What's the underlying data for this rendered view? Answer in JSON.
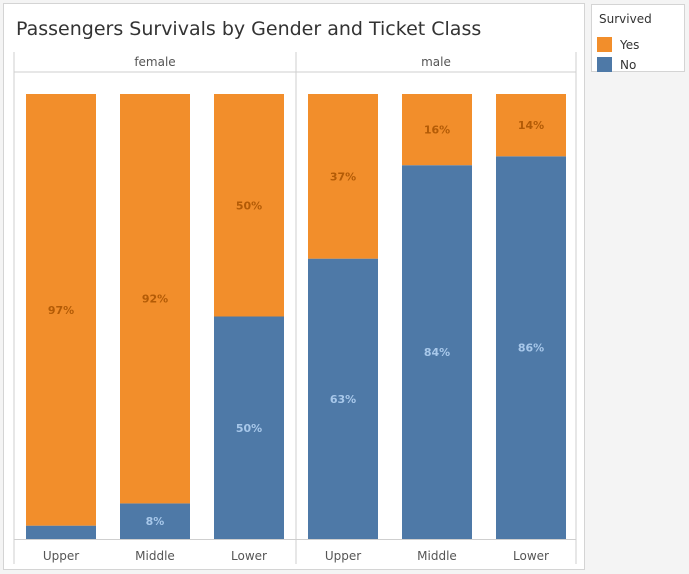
{
  "chart_data": {
    "type": "bar",
    "stacked": true,
    "normalized": true,
    "title": "Passengers Survivals by Gender and Ticket Class",
    "facet_order": [
      "female",
      "male"
    ],
    "categories": [
      "Upper",
      "Middle",
      "Lower"
    ],
    "ylim": [
      0,
      100
    ],
    "grid": false,
    "legend": {
      "title": "Survived",
      "position": "right",
      "entries": [
        "Yes",
        "No"
      ]
    },
    "facets": [
      {
        "name": "female",
        "series": [
          {
            "name": "No",
            "values": [
              3,
              8,
              50
            ],
            "labels": [
              "",
              "8%",
              "50%"
            ]
          },
          {
            "name": "Yes",
            "values": [
              97,
              92,
              50
            ],
            "labels": [
              "97%",
              "92%",
              "50%"
            ]
          }
        ]
      },
      {
        "name": "male",
        "series": [
          {
            "name": "No",
            "values": [
              63,
              84,
              86
            ],
            "labels": [
              "63%",
              "84%",
              "86%"
            ]
          },
          {
            "name": "Yes",
            "values": [
              37,
              16,
              14
            ],
            "labels": [
              "37%",
              "16%",
              "14%"
            ]
          }
        ]
      }
    ]
  },
  "legend": {
    "title": "Survived",
    "items": [
      {
        "label": "Yes",
        "color": "#f28e2b"
      },
      {
        "label": "No",
        "color": "#4e79a7"
      }
    ]
  },
  "colors": {
    "Yes": "#f28e2b",
    "No": "#4e79a7",
    "yes_label": "#b35b06",
    "no_label": "#a8c8ea",
    "axis_text": "#555555",
    "divider": "#cfcfcf"
  }
}
